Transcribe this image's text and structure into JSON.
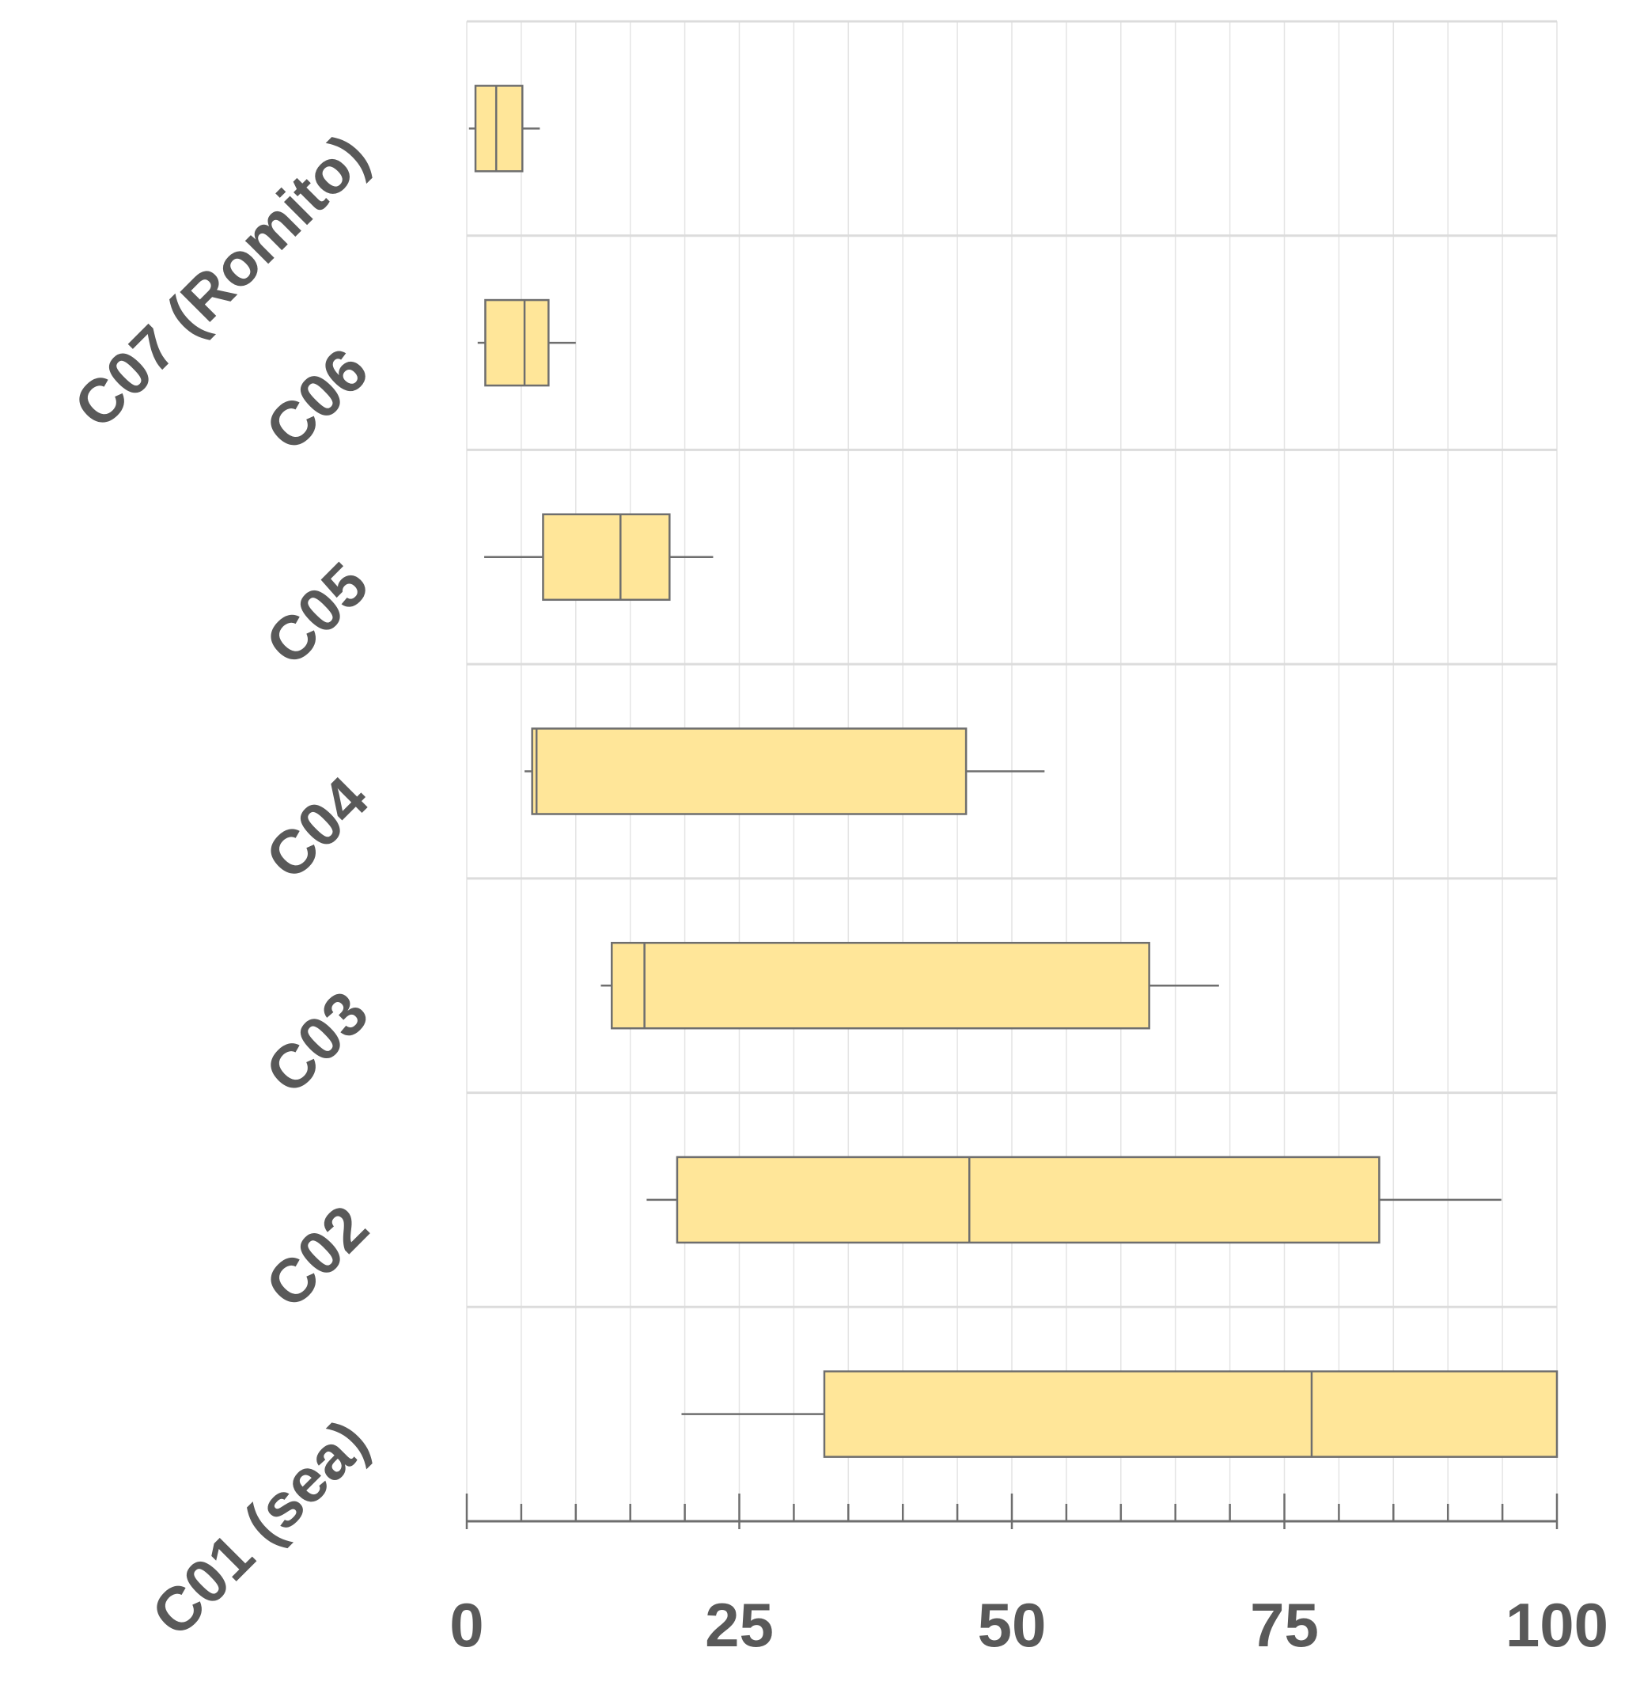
{
  "chart_data": {
    "type": "boxplot",
    "orientation": "horizontal",
    "title": "",
    "xlabel": "",
    "ylabel": "",
    "xlim": [
      0,
      100
    ],
    "x_major_ticks": [
      0,
      25,
      50,
      75,
      100
    ],
    "x_tick_labels": [
      "0",
      "25",
      "50",
      "75",
      "100"
    ],
    "x_minor_tick_step": 5,
    "grid": true,
    "box_color": "#ffe699",
    "line_color": "#6e6e6e",
    "categories": [
      "C07 (Romito)",
      "C06",
      "C05",
      "C04",
      "C03",
      "C02",
      "C01 (sea)"
    ],
    "boxes": [
      {
        "category": "C07 (Romito)",
        "min": 0.2,
        "q1": 0.8,
        "median": 2.7,
        "q3": 5.1,
        "max": 6.7
      },
      {
        "category": "C06",
        "min": 1.0,
        "q1": 1.7,
        "median": 5.3,
        "q3": 7.5,
        "max": 10.0
      },
      {
        "category": "C05",
        "min": 1.6,
        "q1": 7.0,
        "median": 14.1,
        "q3": 18.6,
        "max": 22.6
      },
      {
        "category": "C04",
        "min": 5.3,
        "q1": 6.0,
        "median": 6.4,
        "q3": 45.8,
        "max": 53.0
      },
      {
        "category": "C03",
        "min": 12.3,
        "q1": 13.3,
        "median": 16.3,
        "q3": 62.6,
        "max": 69.0
      },
      {
        "category": "C02",
        "min": 16.5,
        "q1": 19.3,
        "median": 46.1,
        "q3": 83.7,
        "max": 94.9
      },
      {
        "category": "C01 (sea)",
        "min": 19.7,
        "q1": 32.8,
        "median": 77.5,
        "q3": 100.0,
        "max": 100.0
      }
    ]
  }
}
